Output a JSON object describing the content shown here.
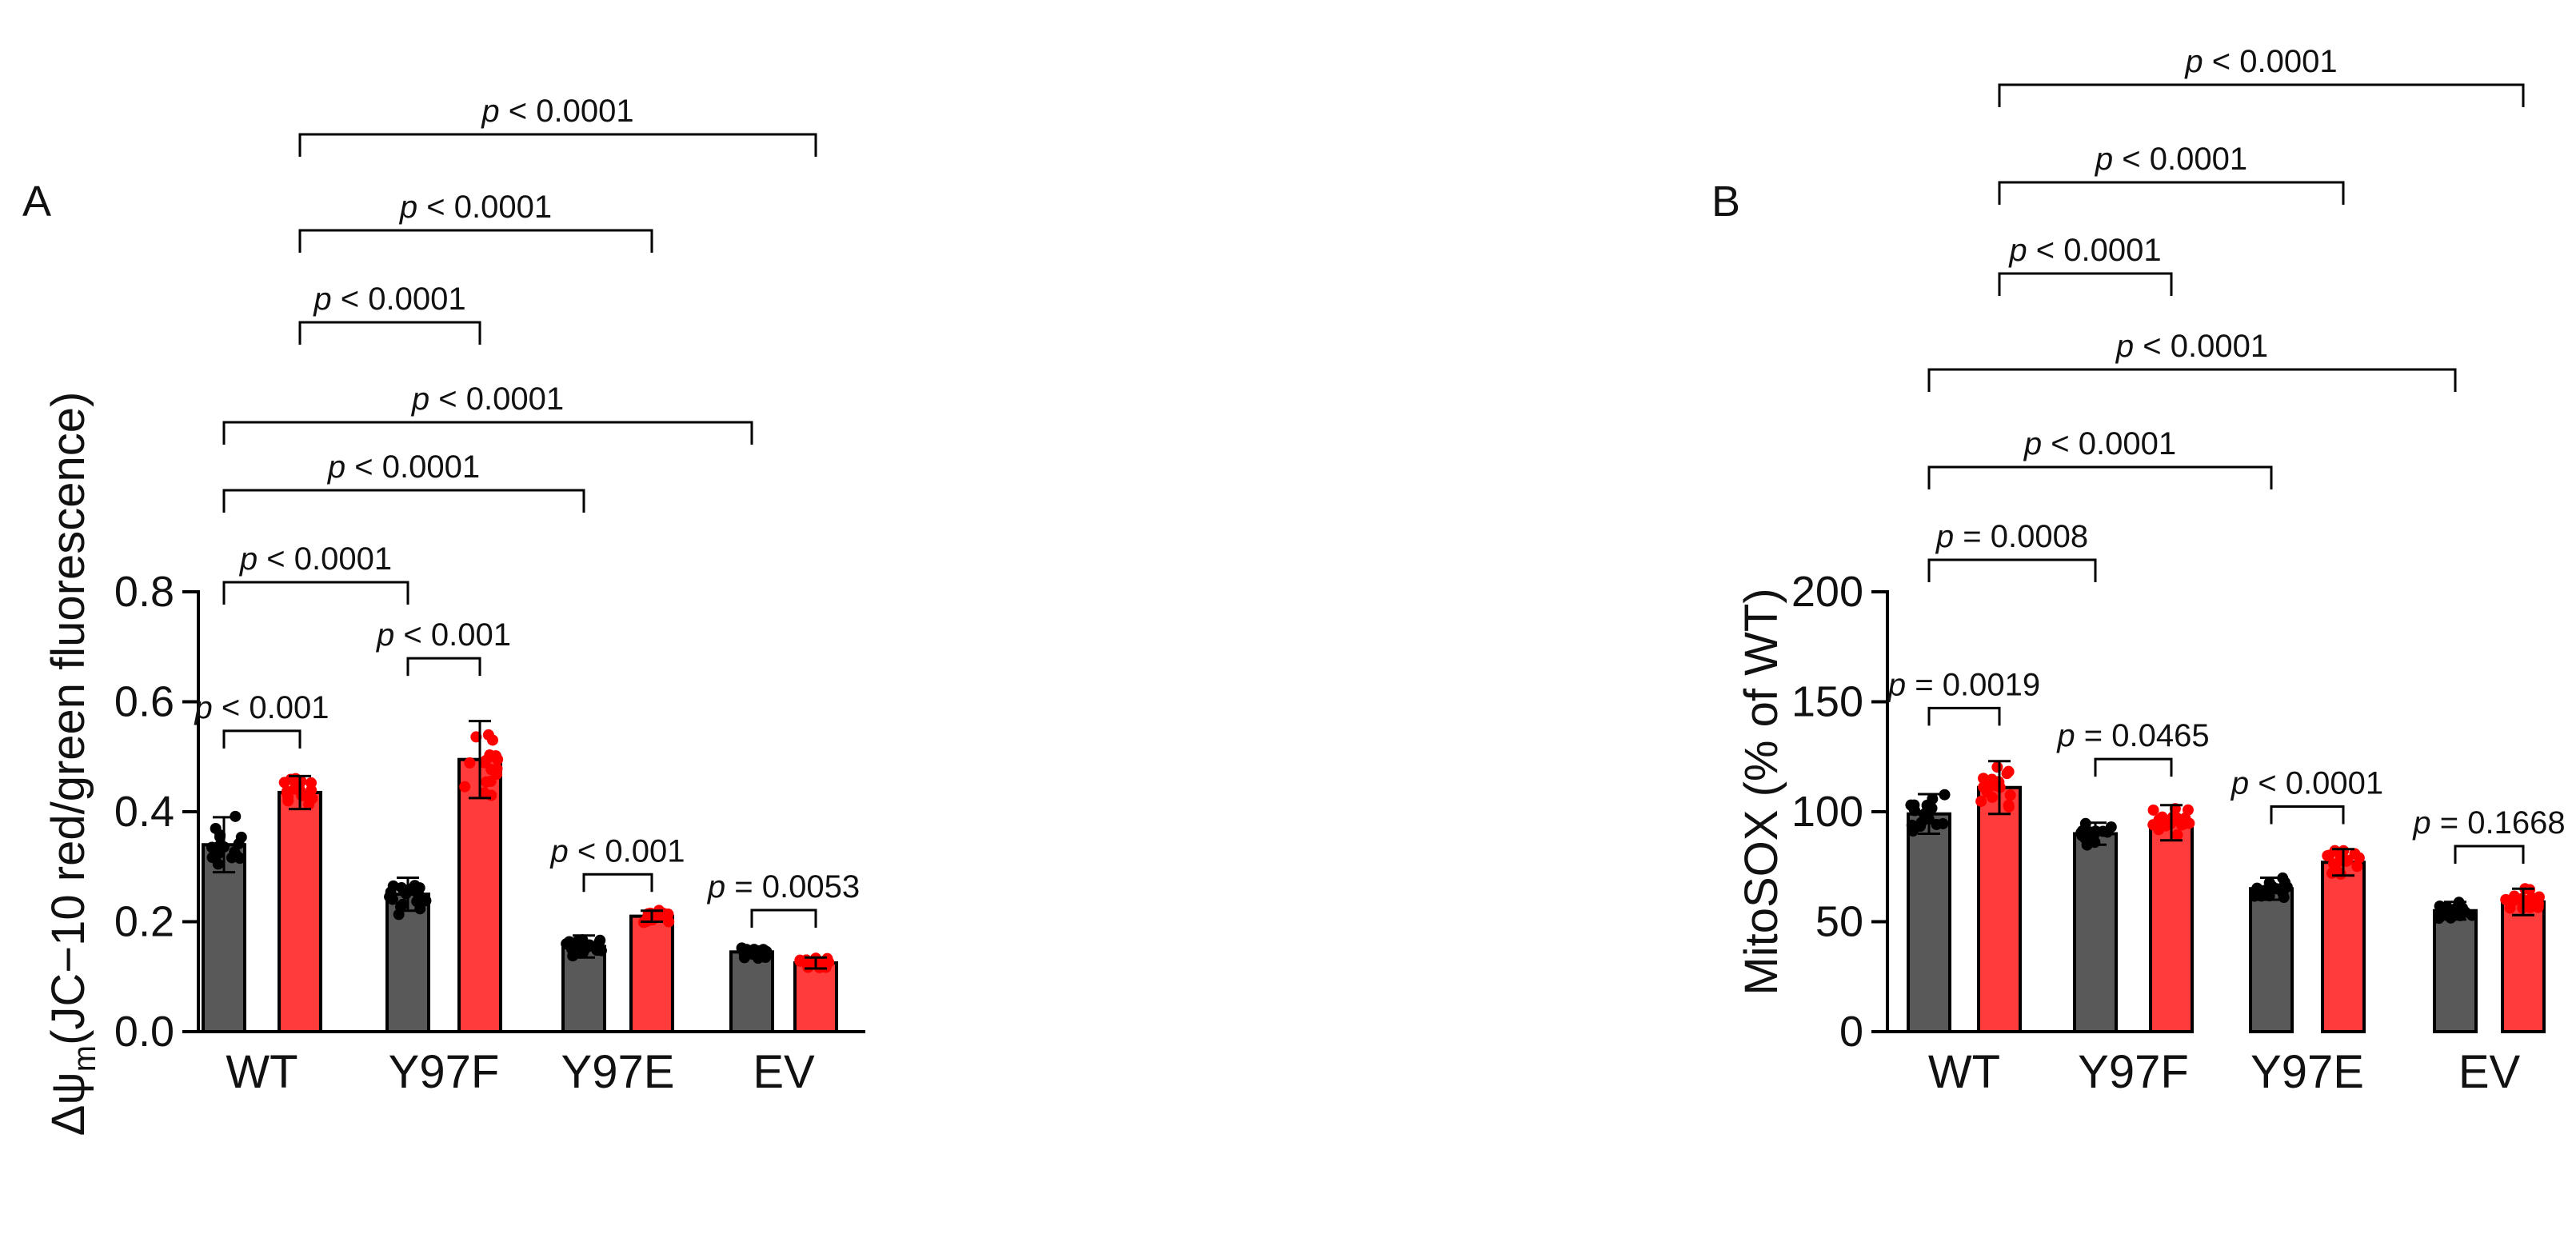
{
  "panels": [
    {
      "letter": "A",
      "ylabel_main": "Δψ",
      "ylabel_sub": "m",
      "ylabel_rest": "(JC−10 red/green fluorescence)"
    },
    {
      "letter": "B",
      "ylabel_main": "MitoSOX (% of WT)",
      "ylabel_sub": "",
      "ylabel_rest": ""
    }
  ],
  "colors": {
    "black_bar": "#595959",
    "red_bar": "#ff3b3b",
    "black_dot": "#000000",
    "red_dot": "#ff0000",
    "axis": "#000000"
  },
  "chart_data": [
    {
      "type": "bar",
      "panel": "A",
      "categories": [
        "WT",
        "Y97F",
        "Y97E",
        "EV"
      ],
      "series": [
        {
          "color": "black",
          "values": [
            0.34,
            0.25,
            0.155,
            0.145
          ],
          "sd": [
            0.05,
            0.03,
            0.02,
            0.01
          ]
        },
        {
          "color": "red",
          "values": [
            0.435,
            0.495,
            0.21,
            0.125
          ],
          "sd": [
            0.03,
            0.07,
            0.01,
            0.01
          ]
        }
      ],
      "ylim": [
        0,
        0.8
      ],
      "yticks": [
        0.0,
        0.2,
        0.4,
        0.6,
        0.8
      ],
      "ytick_labels": [
        "0.0",
        "0.2",
        "0.4",
        "0.6",
        "0.8"
      ],
      "comparisons": [
        {
          "from": [
            0,
            0
          ],
          "to": [
            0,
            1
          ],
          "label": "< 0.001"
        },
        {
          "from": [
            1,
            0
          ],
          "to": [
            1,
            1
          ],
          "label": "< 0.001"
        },
        {
          "from": [
            2,
            0
          ],
          "to": [
            2,
            1
          ],
          "label": "< 0.001"
        },
        {
          "from": [
            3,
            0
          ],
          "to": [
            3,
            1
          ],
          "label": "= 0.0053"
        },
        {
          "from": [
            0,
            0
          ],
          "to": [
            1,
            0
          ],
          "label": "< 0.0001"
        },
        {
          "from": [
            0,
            0
          ],
          "to": [
            2,
            0
          ],
          "label": "< 0.0001"
        },
        {
          "from": [
            0,
            0
          ],
          "to": [
            3,
            0
          ],
          "label": "< 0.0001"
        },
        {
          "from": [
            0,
            1
          ],
          "to": [
            1,
            1
          ],
          "label": "< 0.0001"
        },
        {
          "from": [
            0,
            1
          ],
          "to": [
            2,
            1
          ],
          "label": "< 0.0001"
        },
        {
          "from": [
            0,
            1
          ],
          "to": [
            3,
            1
          ],
          "label": "< 0.0001"
        }
      ]
    },
    {
      "type": "bar",
      "panel": "B",
      "categories": [
        "WT",
        "Y97F",
        "Y97E",
        "EV"
      ],
      "series": [
        {
          "color": "black",
          "values": [
            99,
            90,
            65,
            55
          ],
          "sd": [
            9,
            5,
            5,
            4
          ]
        },
        {
          "color": "red",
          "values": [
            111,
            95,
            77,
            59
          ],
          "sd": [
            12,
            8,
            6,
            6
          ]
        }
      ],
      "ylim": [
        0,
        200
      ],
      "yticks": [
        0,
        50,
        100,
        150,
        200
      ],
      "ytick_labels": [
        "0",
        "50",
        "100",
        "150",
        "200"
      ],
      "comparisons": [
        {
          "from": [
            0,
            0
          ],
          "to": [
            0,
            1
          ],
          "label": "= 0.0019"
        },
        {
          "from": [
            1,
            0
          ],
          "to": [
            1,
            1
          ],
          "label": "= 0.0465"
        },
        {
          "from": [
            2,
            0
          ],
          "to": [
            2,
            1
          ],
          "label": "< 0.0001"
        },
        {
          "from": [
            3,
            0
          ],
          "to": [
            3,
            1
          ],
          "label": "= 0.1668"
        },
        {
          "from": [
            0,
            0
          ],
          "to": [
            1,
            0
          ],
          "label": "= 0.0008"
        },
        {
          "from": [
            0,
            0
          ],
          "to": [
            2,
            0
          ],
          "label": "< 0.0001"
        },
        {
          "from": [
            0,
            0
          ],
          "to": [
            3,
            0
          ],
          "label": "< 0.0001"
        },
        {
          "from": [
            0,
            1
          ],
          "to": [
            1,
            1
          ],
          "label": "< 0.0001"
        },
        {
          "from": [
            0,
            1
          ],
          "to": [
            2,
            1
          ],
          "label": "< 0.0001"
        },
        {
          "from": [
            0,
            1
          ],
          "to": [
            3,
            1
          ],
          "label": "< 0.0001"
        }
      ]
    }
  ],
  "p_symbol": "p"
}
